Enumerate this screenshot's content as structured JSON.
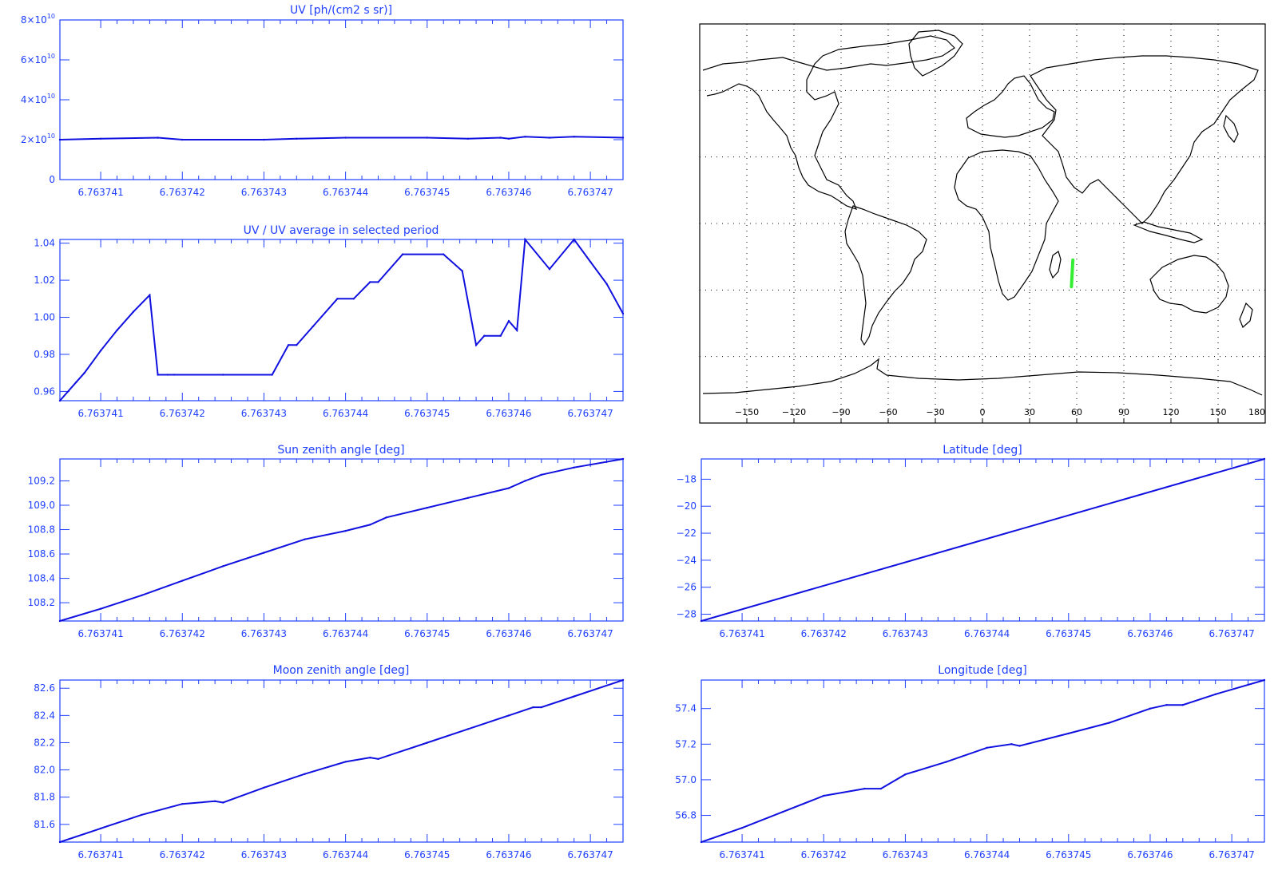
{
  "colors": {
    "axis": "#1f3fff",
    "series": "#1010e0",
    "track": "#33ee33",
    "map": "#000000"
  },
  "chart_data": [
    {
      "id": "uv",
      "type": "line",
      "title": "UV [ph/(cm2 s sr)]",
      "x": [
        6.7637405,
        6.763741,
        6.7637417,
        6.763742,
        6.763743,
        6.7637434,
        6.763744,
        6.763745,
        6.7637455,
        6.7637459,
        6.763746,
        6.7637462,
        6.7637465,
        6.7637468,
        6.7637474
      ],
      "y": [
        20000000000.0,
        20500000000.0,
        21000000000.0,
        20000000000.0,
        20000000000.0,
        20500000000.0,
        21000000000.0,
        21000000000.0,
        20500000000.0,
        21000000000.0,
        20500000000.0,
        21500000000.0,
        21000000000.0,
        21500000000.0,
        21000000000.0
      ],
      "xlim": [
        6.7637405,
        6.7637474
      ],
      "ylim": [
        0,
        80000000000.0
      ],
      "xtick_values": [
        6.763741,
        6.763742,
        6.763743,
        6.763744,
        6.763745,
        6.763746,
        6.763747
      ],
      "xtick_labels": [
        "6.763741",
        "6.763742",
        "6.763743",
        "6.763744",
        "6.763745",
        "6.763746",
        "6.763747"
      ],
      "ytick_values": [
        0,
        20000000000.0,
        40000000000.0,
        60000000000.0,
        80000000000.0
      ],
      "ytick_labels": [
        {
          "base": "0",
          "exp": ""
        },
        {
          "base": "2×10",
          "exp": "10"
        },
        {
          "base": "4×10",
          "exp": "10"
        },
        {
          "base": "6×10",
          "exp": "10"
        },
        {
          "base": "8×10",
          "exp": "10"
        }
      ]
    },
    {
      "id": "uvratio",
      "type": "line",
      "title": "UV / UV average in selected period",
      "x": [
        6.7637405,
        6.7637407,
        6.7637408,
        6.763741,
        6.7637412,
        6.7637414,
        6.7637416,
        6.7637417,
        6.76374182,
        6.7637419,
        6.7637425,
        6.7637431,
        6.7637433,
        6.7637434,
        6.7637436,
        6.7637439,
        6.7637441,
        6.7637443,
        6.7637444,
        6.7637447,
        6.7637452,
        6.76374543,
        6.7637456,
        6.7637457,
        6.7637459,
        6.763746,
        6.7637461,
        6.7637462,
        6.7637465,
        6.7637468,
        6.763747,
        6.7637472,
        6.7637474
      ],
      "y": [
        0.955,
        0.965,
        0.97,
        0.982,
        0.993,
        1.003,
        1.012,
        0.969,
        0.969,
        0.969,
        0.969,
        0.969,
        0.985,
        0.985,
        0.995,
        1.01,
        1.01,
        1.019,
        1.019,
        1.034,
        1.034,
        1.025,
        0.985,
        0.99,
        0.99,
        0.998,
        0.993,
        1.042,
        1.026,
        1.042,
        1.03,
        1.018,
        1.002
      ],
      "xlim": [
        6.7637405,
        6.7637474
      ],
      "ylim": [
        0.955,
        1.042
      ],
      "xtick_values": [
        6.763741,
        6.763742,
        6.763743,
        6.763744,
        6.763745,
        6.763746,
        6.763747
      ],
      "xtick_labels": [
        "6.763741",
        "6.763742",
        "6.763743",
        "6.763744",
        "6.763745",
        "6.763746",
        "6.763747"
      ],
      "ytick_values": [
        0.96,
        0.98,
        1.0,
        1.02,
        1.04
      ],
      "ytick_labels": [
        "0.96",
        "0.98",
        "1.00",
        "1.02",
        "1.04"
      ]
    },
    {
      "id": "sun",
      "type": "line",
      "title": "Sun zenith angle [deg]",
      "x": [
        6.7637405,
        6.763741,
        6.7637415,
        6.763742,
        6.7637425,
        6.763743,
        6.7637435,
        6.763744,
        6.7637443,
        6.7637445,
        6.763745,
        6.7637455,
        6.763746,
        6.7637462,
        6.7637464,
        6.7637468,
        6.7637474
      ],
      "y": [
        108.05,
        108.15,
        108.26,
        108.38,
        108.5,
        108.61,
        108.72,
        108.79,
        108.84,
        108.9,
        108.98,
        109.06,
        109.14,
        109.2,
        109.25,
        109.31,
        109.38
      ],
      "xlim": [
        6.7637405,
        6.7637474
      ],
      "ylim": [
        108.05,
        109.38
      ],
      "xtick_values": [
        6.763741,
        6.763742,
        6.763743,
        6.763744,
        6.763745,
        6.763746,
        6.763747
      ],
      "xtick_labels": [
        "6.763741",
        "6.763742",
        "6.763743",
        "6.763744",
        "6.763745",
        "6.763746",
        "6.763747"
      ],
      "ytick_values": [
        108.2,
        108.4,
        108.6,
        108.8,
        109.0,
        109.2
      ],
      "ytick_labels": [
        "108.2",
        "108.4",
        "108.6",
        "108.8",
        "109.0",
        "109.2"
      ]
    },
    {
      "id": "lat",
      "type": "line",
      "title": "Latitude [deg]",
      "x": [
        6.7637405,
        6.7637474
      ],
      "y": [
        -28.5,
        -16.5
      ],
      "xlim": [
        6.7637405,
        6.7637474
      ],
      "ylim": [
        -28.5,
        -16.5
      ],
      "xtick_values": [
        6.763741,
        6.763742,
        6.763743,
        6.763744,
        6.763745,
        6.763746,
        6.763747
      ],
      "xtick_labels": [
        "6.763741",
        "6.763742",
        "6.763743",
        "6.763744",
        "6.763745",
        "6.763746",
        "6.763747"
      ],
      "ytick_values": [
        -28,
        -26,
        -24,
        -22,
        -20,
        -18
      ],
      "ytick_labels": [
        "−28",
        "−26",
        "−24",
        "−22",
        "−20",
        "−18"
      ]
    },
    {
      "id": "moon",
      "type": "line",
      "title": "Moon zenith angle [deg]",
      "x": [
        6.7637405,
        6.763741,
        6.7637415,
        6.763742,
        6.7637424,
        6.7637425,
        6.763743,
        6.7637435,
        6.763744,
        6.7637443,
        6.7637444,
        6.763745,
        6.7637455,
        6.763746,
        6.7637463,
        6.7637464,
        6.7637468,
        6.7637474
      ],
      "y": [
        81.47,
        81.57,
        81.67,
        81.75,
        81.77,
        81.76,
        81.87,
        81.97,
        82.06,
        82.09,
        82.08,
        82.2,
        82.3,
        82.4,
        82.46,
        82.46,
        82.54,
        82.66
      ],
      "xlim": [
        6.7637405,
        6.7637474
      ],
      "ylim": [
        81.47,
        82.66
      ],
      "xtick_values": [
        6.763741,
        6.763742,
        6.763743,
        6.763744,
        6.763745,
        6.763746,
        6.763747
      ],
      "xtick_labels": [
        "6.763741",
        "6.763742",
        "6.763743",
        "6.763744",
        "6.763745",
        "6.763746",
        "6.763747"
      ],
      "ytick_values": [
        81.6,
        81.8,
        82.0,
        82.2,
        82.4,
        82.6
      ],
      "ytick_labels": [
        "81.6",
        "81.8",
        "82.0",
        "82.2",
        "82.4",
        "82.6"
      ]
    },
    {
      "id": "lon",
      "type": "line",
      "title": "Longitude [deg]",
      "x": [
        6.7637405,
        6.763741,
        6.7637415,
        6.763742,
        6.7637425,
        6.7637427,
        6.763743,
        6.7637435,
        6.763744,
        6.7637443,
        6.7637444,
        6.763745,
        6.7637455,
        6.763746,
        6.7637462,
        6.7637464,
        6.7637468,
        6.7637474
      ],
      "y": [
        56.65,
        56.73,
        56.82,
        56.91,
        56.95,
        56.95,
        57.03,
        57.1,
        57.18,
        57.2,
        57.19,
        57.26,
        57.32,
        57.4,
        57.42,
        57.42,
        57.48,
        57.56
      ],
      "xlim": [
        6.7637405,
        6.7637474
      ],
      "ylim": [
        56.65,
        57.56
      ],
      "xtick_values": [
        6.763741,
        6.763742,
        6.763743,
        6.763744,
        6.763745,
        6.763746,
        6.763747
      ],
      "xtick_labels": [
        "6.763741",
        "6.763742",
        "6.763743",
        "6.763744",
        "6.763745",
        "6.763746",
        "6.763747"
      ],
      "ytick_values": [
        56.8,
        57.0,
        57.2,
        57.4
      ],
      "ytick_labels": [
        "56.8",
        "57.0",
        "57.2",
        "57.4"
      ]
    },
    {
      "id": "map",
      "type": "scatter",
      "title": "",
      "xlim": [
        -180,
        180
      ],
      "ylim": [
        -90,
        90
      ],
      "xtick_values": [
        -150,
        -120,
        -90,
        -60,
        -30,
        0,
        30,
        60,
        90,
        120,
        150,
        180
      ],
      "xtick_labels": [
        "−150",
        "−120",
        "−90",
        "−60",
        "−30",
        "0",
        "30",
        "60",
        "90",
        "120",
        "150",
        "180"
      ],
      "grid": true,
      "track": {
        "lon": [
          56.65,
          57.56
        ],
        "lat": [
          -28.5,
          -16.5
        ]
      }
    }
  ]
}
